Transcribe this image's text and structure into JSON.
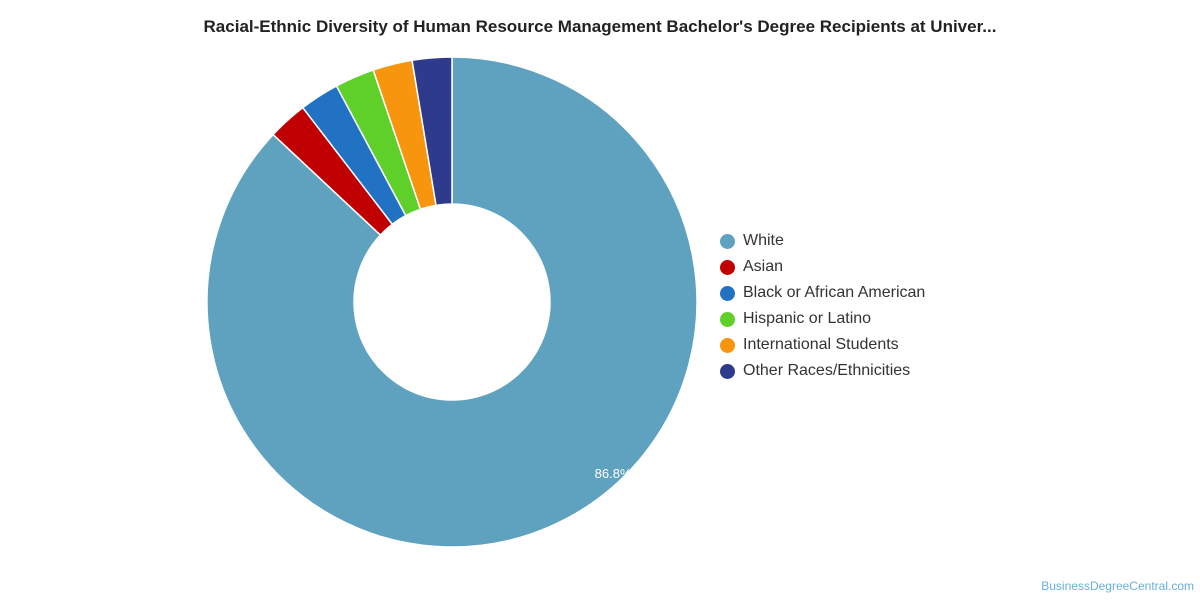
{
  "chart_data": {
    "type": "pie",
    "title": "Racial-Ethnic Diversity of Human Resource Management Bachelor's Degree Recipients at Univer...",
    "donut": true,
    "legend_position": "right",
    "categories": [
      "White",
      "Asian",
      "Black or African American",
      "Hispanic or Latino",
      "International Students",
      "Other Races/Ethnicities"
    ],
    "values": [
      86.8,
      2.6,
      2.6,
      2.6,
      2.6,
      2.6
    ],
    "colors": [
      "#5fa2bf",
      "#c00000",
      "#2272c3",
      "#5fcf2a",
      "#f7960e",
      "#2e3a8c"
    ],
    "data_labels": [
      {
        "category": "White",
        "text": "86.8%"
      }
    ]
  },
  "watermark": "BusinessDegreeCentral.com"
}
